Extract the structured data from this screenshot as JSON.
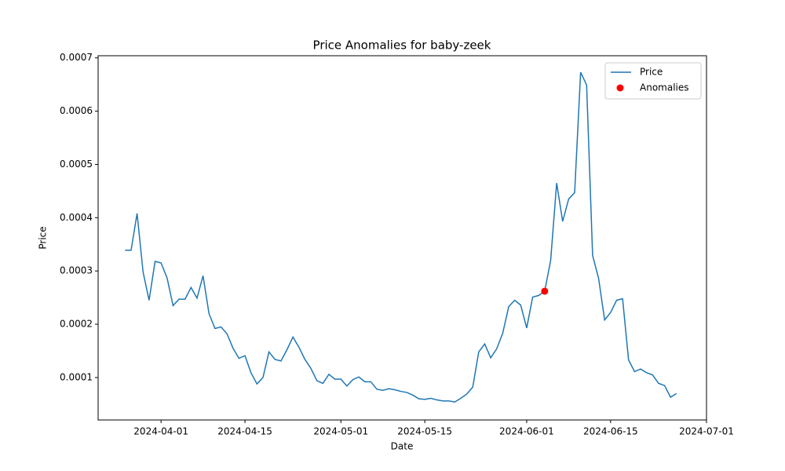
{
  "chart_data": {
    "type": "line",
    "title": "Price Anomalies for baby-zeek",
    "x_label": "Date",
    "y_label": "Price",
    "x": [
      "2024-03-26",
      "2024-03-27",
      "2024-03-28",
      "2024-03-29",
      "2024-03-30",
      "2024-03-31",
      "2024-04-01",
      "2024-04-02",
      "2024-04-03",
      "2024-04-04",
      "2024-04-05",
      "2024-04-06",
      "2024-04-07",
      "2024-04-08",
      "2024-04-09",
      "2024-04-10",
      "2024-04-11",
      "2024-04-12",
      "2024-04-13",
      "2024-04-14",
      "2024-04-15",
      "2024-04-16",
      "2024-04-17",
      "2024-04-18",
      "2024-04-19",
      "2024-04-20",
      "2024-04-21",
      "2024-04-22",
      "2024-04-23",
      "2024-04-24",
      "2024-04-25",
      "2024-04-26",
      "2024-04-27",
      "2024-04-28",
      "2024-04-29",
      "2024-04-30",
      "2024-05-01",
      "2024-05-02",
      "2024-05-03",
      "2024-05-04",
      "2024-05-05",
      "2024-05-06",
      "2024-05-07",
      "2024-05-08",
      "2024-05-09",
      "2024-05-10",
      "2024-05-11",
      "2024-05-12",
      "2024-05-13",
      "2024-05-14",
      "2024-05-15",
      "2024-05-16",
      "2024-05-17",
      "2024-05-18",
      "2024-05-19",
      "2024-05-20",
      "2024-05-21",
      "2024-05-22",
      "2024-05-23",
      "2024-05-24",
      "2024-05-25",
      "2024-05-26",
      "2024-05-27",
      "2024-05-28",
      "2024-05-29",
      "2024-05-30",
      "2024-05-31",
      "2024-06-01",
      "2024-06-02",
      "2024-06-03",
      "2024-06-04",
      "2024-06-05",
      "2024-06-06",
      "2024-06-07",
      "2024-06-08",
      "2024-06-09",
      "2024-06-10",
      "2024-06-11",
      "2024-06-12",
      "2024-06-13",
      "2024-06-14",
      "2024-06-15",
      "2024-06-16",
      "2024-06-17",
      "2024-06-18",
      "2024-06-19",
      "2024-06-20",
      "2024-06-21",
      "2024-06-22",
      "2024-06-23",
      "2024-06-24",
      "2024-06-25",
      "2024-06-26"
    ],
    "series": [
      {
        "name": "Price",
        "color": "#1f77b4",
        "values": [
          0.000339,
          0.000339,
          0.000408,
          0.000298,
          0.000245,
          0.000318,
          0.000315,
          0.000287,
          0.000235,
          0.000247,
          0.000247,
          0.000269,
          0.000249,
          0.000291,
          0.00022,
          0.000192,
          0.000195,
          0.000182,
          0.000155,
          0.000136,
          0.000141,
          0.000109,
          8.8e-05,
          0.0001,
          0.000148,
          0.000134,
          0.000131,
          0.000152,
          0.000176,
          0.000157,
          0.000134,
          0.000117,
          9.4e-05,
          8.9e-05,
          0.000106,
          9.7e-05,
          9.7e-05,
          8.4e-05,
          9.6e-05,
          0.000101,
          9.2e-05,
          9.2e-05,
          7.8e-05,
          7.6e-05,
          7.9e-05,
          7.7e-05,
          7.4e-05,
          7.2e-05,
          6.7e-05,
          6e-05,
          5.9e-05,
          6.1e-05,
          5.8e-05,
          5.6e-05,
          5.6e-05,
          5.4e-05,
          6.1e-05,
          6.9e-05,
          8.2e-05,
          0.000148,
          0.000163,
          0.000137,
          0.000154,
          0.000183,
          0.000233,
          0.000245,
          0.000236,
          0.000193,
          0.000251,
          0.000254,
          0.000262,
          0.00032,
          0.000465,
          0.000393,
          0.000435,
          0.000447,
          0.000673,
          0.000649,
          0.000329,
          0.000286,
          0.000208,
          0.000222,
          0.000245,
          0.000248,
          0.000133,
          0.000111,
          0.000116,
          0.000109,
          0.000105,
          8.9e-05,
          8.5e-05,
          6.3e-05,
          7e-05
        ]
      },
      {
        "name": "Anomalies",
        "type": "scatter",
        "color": "#ff0000",
        "x": [
          "2024-06-04"
        ],
        "values": [
          0.000262
        ]
      }
    ],
    "xlim": [
      "2024-03-21T12:00",
      "2024-07-01"
    ],
    "xticks": [
      "2024-04-01",
      "2024-04-15",
      "2024-05-01",
      "2024-05-15",
      "2024-06-01",
      "2024-06-15",
      "2024-07-01"
    ],
    "ylim": [
      2.03e-05,
      0.000704
    ],
    "yticks": [
      0.0001,
      0.0002,
      0.0003,
      0.0004,
      0.0005,
      0.0006,
      0.0007
    ],
    "grid": false,
    "legend": "upper right"
  }
}
